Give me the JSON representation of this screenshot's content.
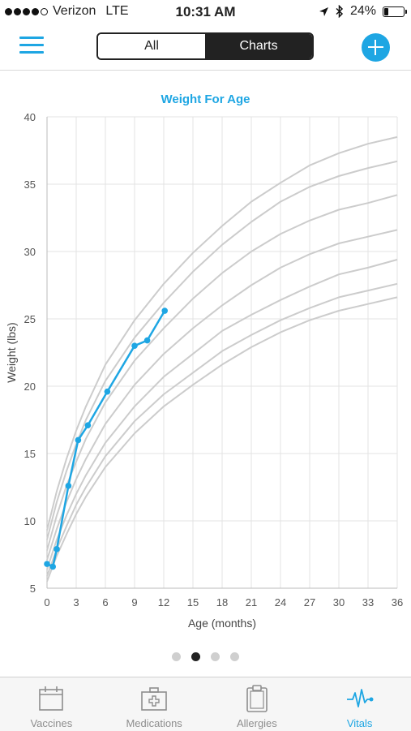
{
  "status_bar": {
    "carrier": "Verizon",
    "network": "LTE",
    "time": "10:31 AM",
    "battery_percent": "24%",
    "battery_level": 0.24,
    "signal_bars": 4
  },
  "header": {
    "segments": [
      {
        "label": "All",
        "selected": false
      },
      {
        "label": "Charts",
        "selected": true
      }
    ],
    "accent_color": "#1ea6e3"
  },
  "chart_data": {
    "type": "line",
    "title": "Weight For Age",
    "xlabel": "Age (months)",
    "ylabel": "Weight (lbs)",
    "xlim": [
      0,
      36
    ],
    "ylim": [
      5,
      40
    ],
    "xticks": [
      0,
      3,
      6,
      9,
      12,
      15,
      18,
      21,
      24,
      27,
      30,
      33,
      36
    ],
    "yticks": [
      5,
      10,
      15,
      20,
      25,
      30,
      35,
      40
    ],
    "grid": true,
    "series": [
      {
        "color": "#1ea6e3",
        "x": [
          0,
          0.6,
          1,
          2.2,
          3.2,
          4.2,
          6.2,
          9,
          10.3,
          12.1
        ],
        "y": [
          6.8,
          6.6,
          7.9,
          12.6,
          16,
          17.1,
          19.6,
          23,
          23.4,
          25.6
        ]
      }
    ],
    "reference_curves": {
      "color": "#cccccc",
      "x": [
        0,
        1,
        2,
        3,
        4,
        6,
        9,
        12,
        15,
        18,
        21,
        24,
        27,
        30,
        33,
        36
      ],
      "curves": [
        [
          5.5,
          7.4,
          9.0,
          10.5,
          11.8,
          14.0,
          16.5,
          18.5,
          20.1,
          21.6,
          22.9,
          24.0,
          24.9,
          25.6,
          26.1,
          26.6
        ],
        [
          5.9,
          7.9,
          9.6,
          11.2,
          12.5,
          14.8,
          17.4,
          19.4,
          21.0,
          22.6,
          23.8,
          24.9,
          25.8,
          26.6,
          27.1,
          27.6
        ],
        [
          6.4,
          8.6,
          10.4,
          12.0,
          13.4,
          15.8,
          18.5,
          20.7,
          22.4,
          24.1,
          25.3,
          26.4,
          27.4,
          28.3,
          28.8,
          29.4
        ],
        [
          7.1,
          9.4,
          11.4,
          13.1,
          14.6,
          17.2,
          20.1,
          22.4,
          24.3,
          26.0,
          27.5,
          28.8,
          29.8,
          30.6,
          31.1,
          31.6
        ],
        [
          7.8,
          10.4,
          12.6,
          14.4,
          16.1,
          18.8,
          21.9,
          24.3,
          26.5,
          28.4,
          30.0,
          31.3,
          32.3,
          33.1,
          33.6,
          34.2
        ],
        [
          8.6,
          11.4,
          13.7,
          15.7,
          17.5,
          20.4,
          23.6,
          26.2,
          28.5,
          30.5,
          32.2,
          33.7,
          34.8,
          35.6,
          36.2,
          36.7
        ],
        [
          9.3,
          12.2,
          14.6,
          16.7,
          18.5,
          21.6,
          24.9,
          27.6,
          29.9,
          31.9,
          33.7,
          35.1,
          36.4,
          37.3,
          38.0,
          38.5
        ]
      ]
    }
  },
  "pagination": {
    "count": 4,
    "active": 1
  },
  "tabs": [
    {
      "label": "Vaccines",
      "icon": "calendar-icon",
      "active": false
    },
    {
      "label": "Medications",
      "icon": "medical-kit-icon",
      "active": false
    },
    {
      "label": "Allergies",
      "icon": "clipboard-icon",
      "active": false
    },
    {
      "label": "Vitals",
      "icon": "heartbeat-icon",
      "active": true
    }
  ]
}
